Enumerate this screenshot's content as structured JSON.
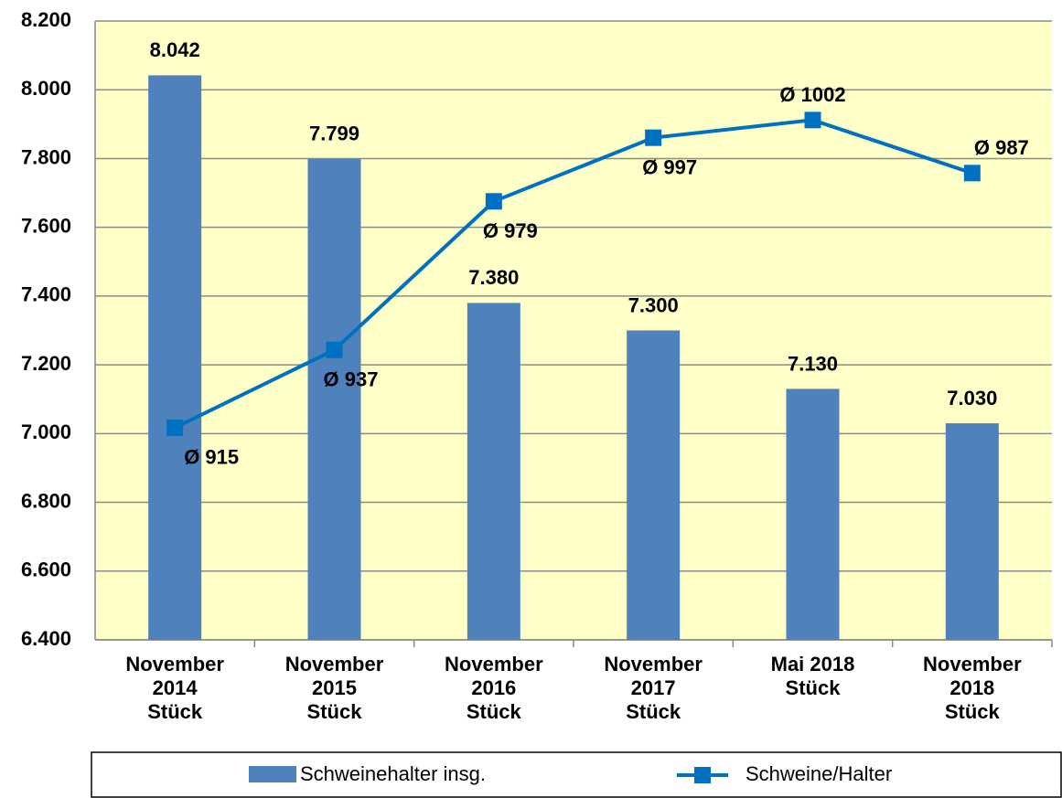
{
  "chart_data": {
    "type": "bar_line",
    "categories": [
      "November\n2014\nStück",
      "November\n2015\nStück",
      "November\n2016\nStück",
      "November\n2017\nStück",
      "Mai 2018\nStück",
      "November\n2018\nStück"
    ],
    "series": [
      {
        "name": "Schweinehalter insg.",
        "type": "bar",
        "color": "#4f81bd",
        "values": [
          8042,
          7799,
          7380,
          7300,
          7130,
          7030
        ],
        "value_labels": [
          "8.042",
          "7.799",
          "7.380",
          "7.300",
          "7.130",
          "7.030"
        ]
      },
      {
        "name": "Schweine/Halter",
        "type": "line",
        "axis": "y2",
        "color": "#0070c0",
        "values": [
          915,
          937,
          979,
          997,
          1002,
          987
        ],
        "value_labels": [
          "Ø 915",
          "Ø 937",
          "Ø 979",
          "Ø 997",
          "Ø 1002",
          "Ø 987"
        ]
      }
    ],
    "ylim": [
      6400,
      8200
    ],
    "yticks": [
      {
        "value": 6400,
        "label": "6.400"
      },
      {
        "value": 6600,
        "label": "6.600"
      },
      {
        "value": 6800,
        "label": "6.800"
      },
      {
        "value": 7000,
        "label": "7.000"
      },
      {
        "value": 7200,
        "label": "7.200"
      },
      {
        "value": 7400,
        "label": "7.400"
      },
      {
        "value": 7600,
        "label": "7.600"
      },
      {
        "value": 7800,
        "label": "7.800"
      },
      {
        "value": 8000,
        "label": "8.000"
      },
      {
        "value": 8200,
        "label": "8.200"
      }
    ],
    "y2lim": [
      855,
      1030
    ],
    "grid": true,
    "legend": "bottom"
  }
}
